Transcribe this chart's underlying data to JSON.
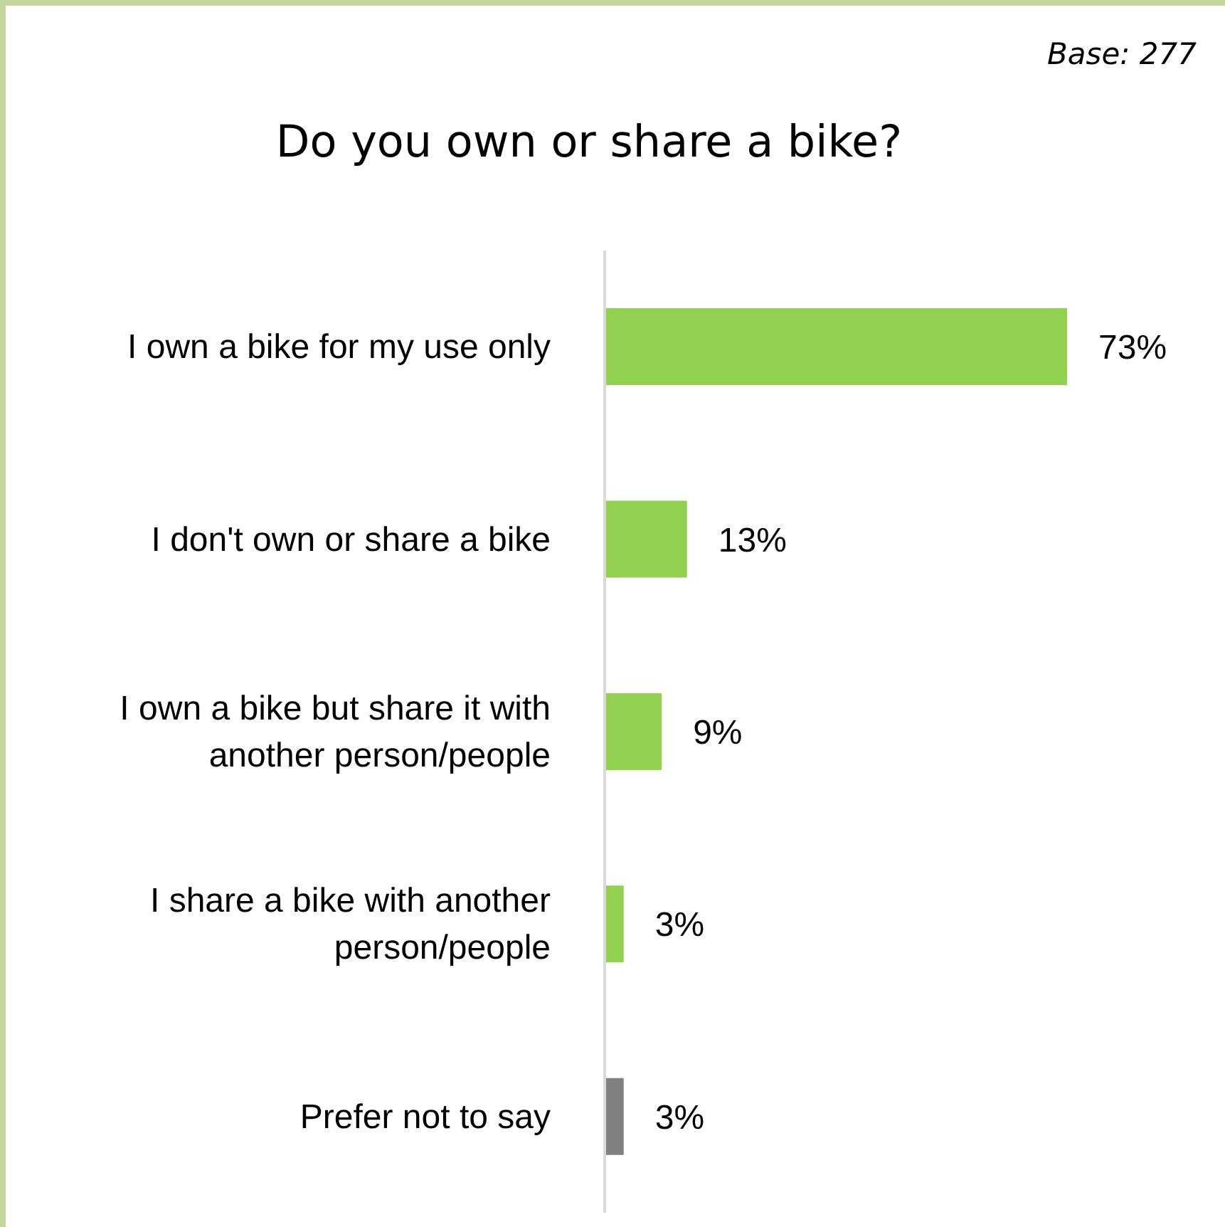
{
  "chart_data": {
    "type": "bar",
    "orientation": "horizontal",
    "title": "Do you own or share a bike?",
    "annotations": [
      "Base: 277"
    ],
    "categories": [
      "I own a bike for my use only",
      "I don't own or share a bike",
      "I own a bike but share it with another person/people",
      "I share a bike with another person/people",
      "Prefer not to say"
    ],
    "values": [
      73,
      13,
      9,
      3,
      3
    ],
    "colors": [
      "#92d050",
      "#92d050",
      "#92d050",
      "#92d050",
      "#808080"
    ],
    "value_labels": [
      "73%",
      "13%",
      "9%",
      "3%",
      "3%"
    ]
  }
}
